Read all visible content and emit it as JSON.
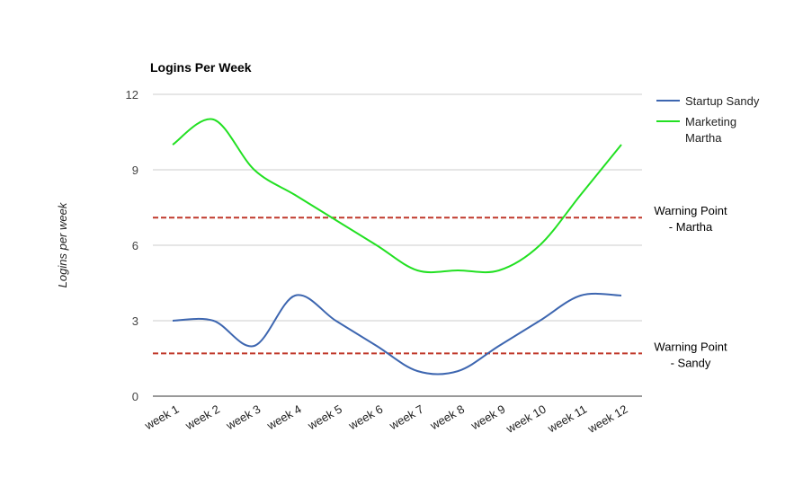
{
  "chart_data": {
    "type": "line",
    "title": "Logins Per Week",
    "xlabel": "",
    "ylabel": "Logins per week",
    "ylim": [
      0,
      12
    ],
    "yticks": [
      0,
      3,
      6,
      9,
      12
    ],
    "grid": true,
    "legend_position": "right",
    "categories": [
      "week 1",
      "week 2",
      "week 3",
      "week 4",
      "week 5",
      "week 6",
      "week 7",
      "week 8",
      "week 9",
      "week 10",
      "week 11",
      "week 12"
    ],
    "series": [
      {
        "name": "Startup Sandy",
        "color": "#3d66b0",
        "values": [
          3,
          3,
          2,
          4,
          3,
          2,
          1,
          1,
          2,
          3,
          4,
          4
        ]
      },
      {
        "name": "Marketing Martha",
        "color": "#22e022",
        "values": [
          10,
          11,
          9,
          8,
          7,
          6,
          5,
          5,
          5,
          6,
          8,
          10
        ]
      }
    ],
    "reference_lines": [
      {
        "label_line1": "Warning Point",
        "label_line2": "- Martha",
        "value": 7.1,
        "color": "#c0392b"
      },
      {
        "label_line1": "Warning Point",
        "label_line2": "- Sandy",
        "value": 1.7,
        "color": "#c0392b"
      }
    ]
  }
}
